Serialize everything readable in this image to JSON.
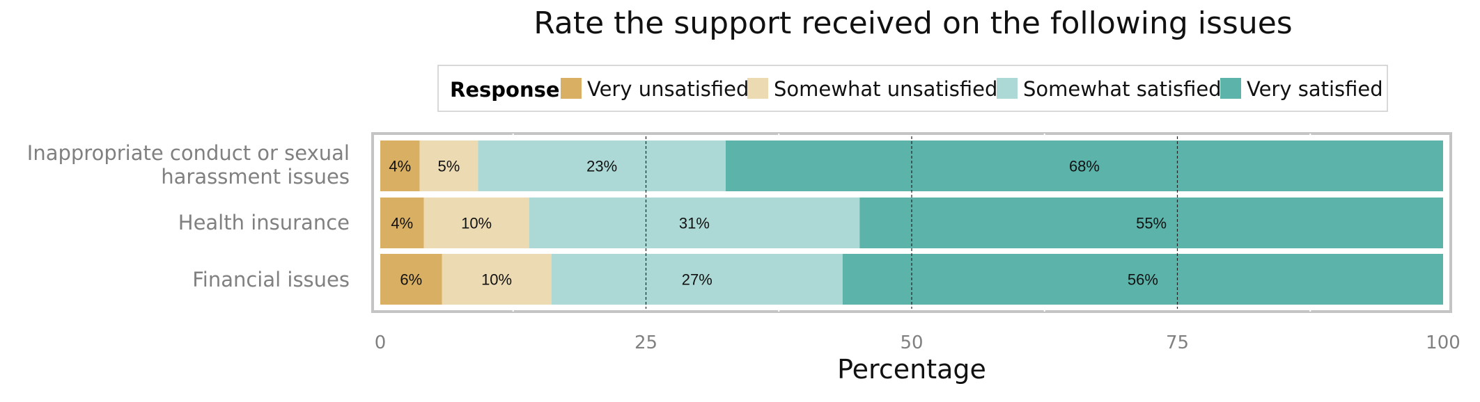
{
  "chart_data": {
    "type": "bar",
    "orientation": "horizontal",
    "stacked": true,
    "title": "Rate the support received on the following issues",
    "xlabel": "Percentage",
    "ylabel": "",
    "xlim": [
      0,
      100
    ],
    "xticks": [
      0,
      25,
      50,
      75,
      100
    ],
    "legend": {
      "title": "Response",
      "placement": "top"
    },
    "categories": [
      [
        "Inappropriate conduct or sexual",
        "harassment issues"
      ],
      [
        "Health insurance"
      ],
      [
        "Financial issues"
      ]
    ],
    "series": [
      {
        "name": "Very unsatisfied",
        "color": "#d9b063",
        "values": [
          3.7,
          4.1,
          5.8
        ],
        "labels": [
          "4%",
          "4%",
          "6%"
        ]
      },
      {
        "name": "Somewhat unsatisfied",
        "color": "#ecdab2",
        "values": [
          5.5,
          9.9,
          10.3
        ],
        "labels": [
          "5%",
          "10%",
          "10%"
        ]
      },
      {
        "name": "Somewhat satisfied",
        "color": "#acd9d5",
        "values": [
          23.3,
          31.1,
          27.4
        ],
        "labels": [
          "23%",
          "31%",
          "27%"
        ]
      },
      {
        "name": "Very satisfied",
        "color": "#5bb3aa",
        "values": [
          67.5,
          54.9,
          56.5
        ],
        "labels": [
          "68%",
          "55%",
          "56%"
        ]
      }
    ],
    "grid": true
  }
}
